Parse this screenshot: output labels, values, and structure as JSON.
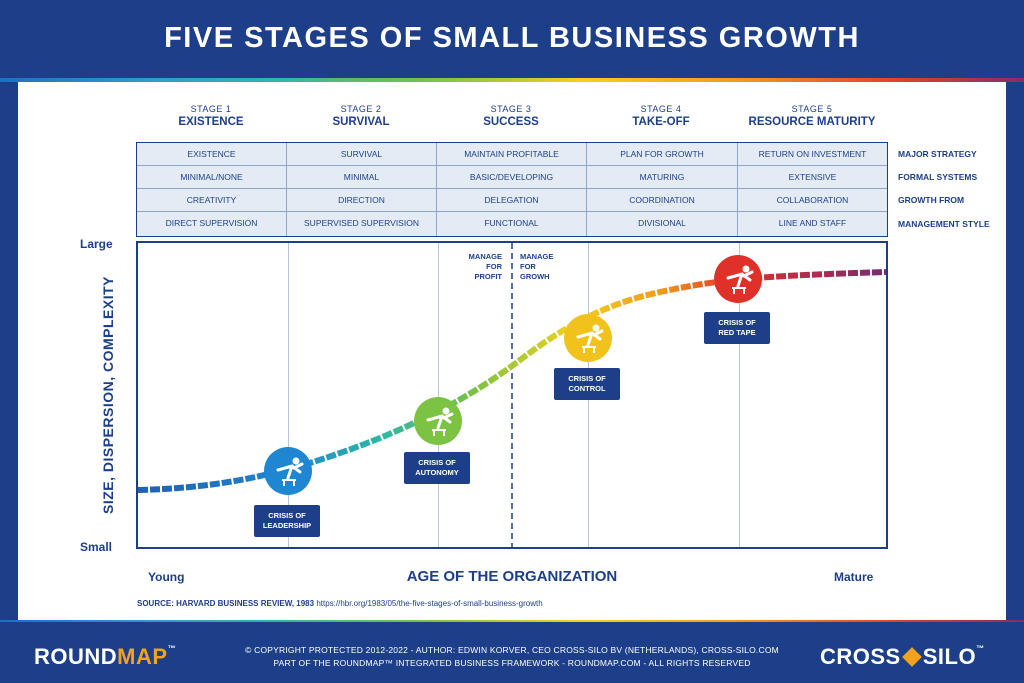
{
  "title": "FIVE STAGES OF SMALL BUSINESS GROWTH",
  "stages": [
    {
      "num": "STAGE 1",
      "name": "EXISTENCE"
    },
    {
      "num": "STAGE 2",
      "name": "SURVIVAL"
    },
    {
      "num": "STAGE 3",
      "name": "SUCCESS"
    },
    {
      "num": "STAGE 4",
      "name": "TAKE-OFF"
    },
    {
      "num": "STAGE 5",
      "name": "RESOURCE MATURITY"
    }
  ],
  "grid_rows": [
    {
      "label": "MAJOR STRATEGY",
      "cells": [
        "EXISTENCE",
        "SURVIVAL",
        "MAINTAIN PROFITABLE",
        "PLAN FOR GROWTH",
        "RETURN ON INVESTMENT"
      ]
    },
    {
      "label": "FORMAL SYSTEMS",
      "cells": [
        "MINIMAL/NONE",
        "MINIMAL",
        "BASIC/DEVELOPING",
        "MATURING",
        "EXTENSIVE"
      ]
    },
    {
      "label": "GROWTH FROM",
      "cells": [
        "CREATIVITY",
        "DIRECTION",
        "DELEGATION",
        "COORDINATION",
        "COLLABORATION"
      ]
    },
    {
      "label": "MANAGEMENT STYLE",
      "cells": [
        "DIRECT SUPERVISION",
        "SUPERVISED SUPERVISION",
        "FUNCTIONAL",
        "DIVISIONAL",
        "LINE AND STAFF"
      ]
    }
  ],
  "axes": {
    "y_top": "Large",
    "y_bottom": "Small",
    "y_title": "SIZE, DISPERSION, COMPLEXITY",
    "x_left": "Young",
    "x_right": "Mature",
    "x_title": "AGE OF THE ORGANIZATION"
  },
  "manage": {
    "profit": [
      "MANAGE",
      "FOR",
      "PROFIT"
    ],
    "growth": [
      "MANAGE",
      "FOR",
      "GROWH"
    ]
  },
  "crises": [
    {
      "lines": [
        "CRISIS OF",
        "LEADERSHIP"
      ],
      "color": "#1f86d1"
    },
    {
      "lines": [
        "CRISIS OF",
        "AUTONOMY"
      ],
      "color": "#7cc243"
    },
    {
      "lines": [
        "CRISIS OF",
        "CONTROL"
      ],
      "color": "#f2c21c"
    },
    {
      "lines": [
        "CRISIS OF",
        "RED TAPE"
      ],
      "color": "#e0302a"
    }
  ],
  "source": {
    "label": "SOURCE: HARVARD BUSINESS REVIEW, 1983",
    "url": "https://hbr.org/1983/05/the-five-stages-of-small-business-growth"
  },
  "footer": {
    "brand_left_a": "ROUND",
    "brand_left_b": "MAP",
    "tm": "™",
    "line1": "© COPYRIGHT PROTECTED 2012-2022 - AUTHOR: EDWIN KORVER, CEO CROSS-SILO BV (NETHERLANDS), CROSS-SILO.COM",
    "line2": "PART OF THE ROUNDMAP™ INTEGRATED BUSINESS FRAMEWORK - ROUNDMAP.COM - ALL RIGHTS RESERVED",
    "brand_right_a": "CROSS",
    "brand_right_b": "SILO",
    "brand_right_mark": "™"
  }
}
